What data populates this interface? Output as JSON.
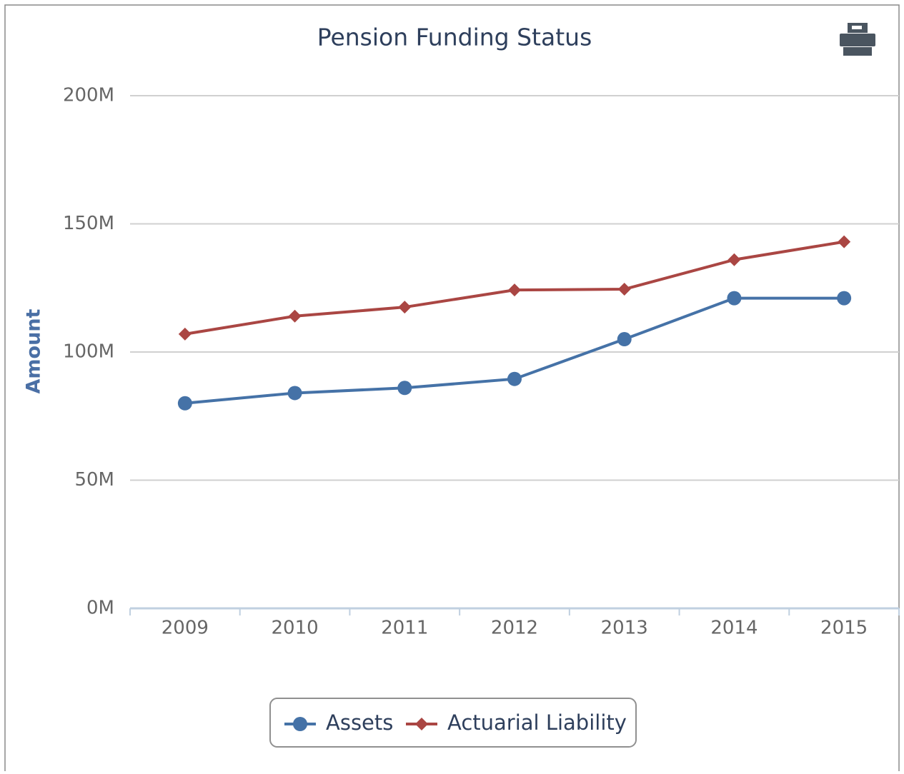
{
  "chart_data": {
    "type": "line",
    "title": "Pension Funding Status",
    "y_label": "Amount",
    "categories": [
      "2009",
      "2010",
      "2011",
      "2012",
      "2013",
      "2014",
      "2015"
    ],
    "series": [
      {
        "name": "Assets",
        "color": "#4572a7",
        "marker": "circle",
        "values": [
          80000000,
          84000000,
          86000000,
          89500000,
          105000000,
          121000000,
          121000000
        ]
      },
      {
        "name": "Actuarial Liability",
        "color": "#aa4643",
        "marker": "diamond",
        "values": [
          107000000,
          114000000,
          117500000,
          124200000,
          124500000,
          136000000,
          143000000
        ]
      }
    ],
    "ylim": [
      0,
      200000000
    ],
    "yticks": [
      {
        "value": 0,
        "label": "0M"
      },
      {
        "value": 50000000,
        "label": "50M"
      },
      {
        "value": 100000000,
        "label": "100M"
      },
      {
        "value": 150000000,
        "label": "150M"
      },
      {
        "value": 200000000,
        "label": "200M"
      }
    ],
    "grid": true,
    "legend": "bottom"
  }
}
